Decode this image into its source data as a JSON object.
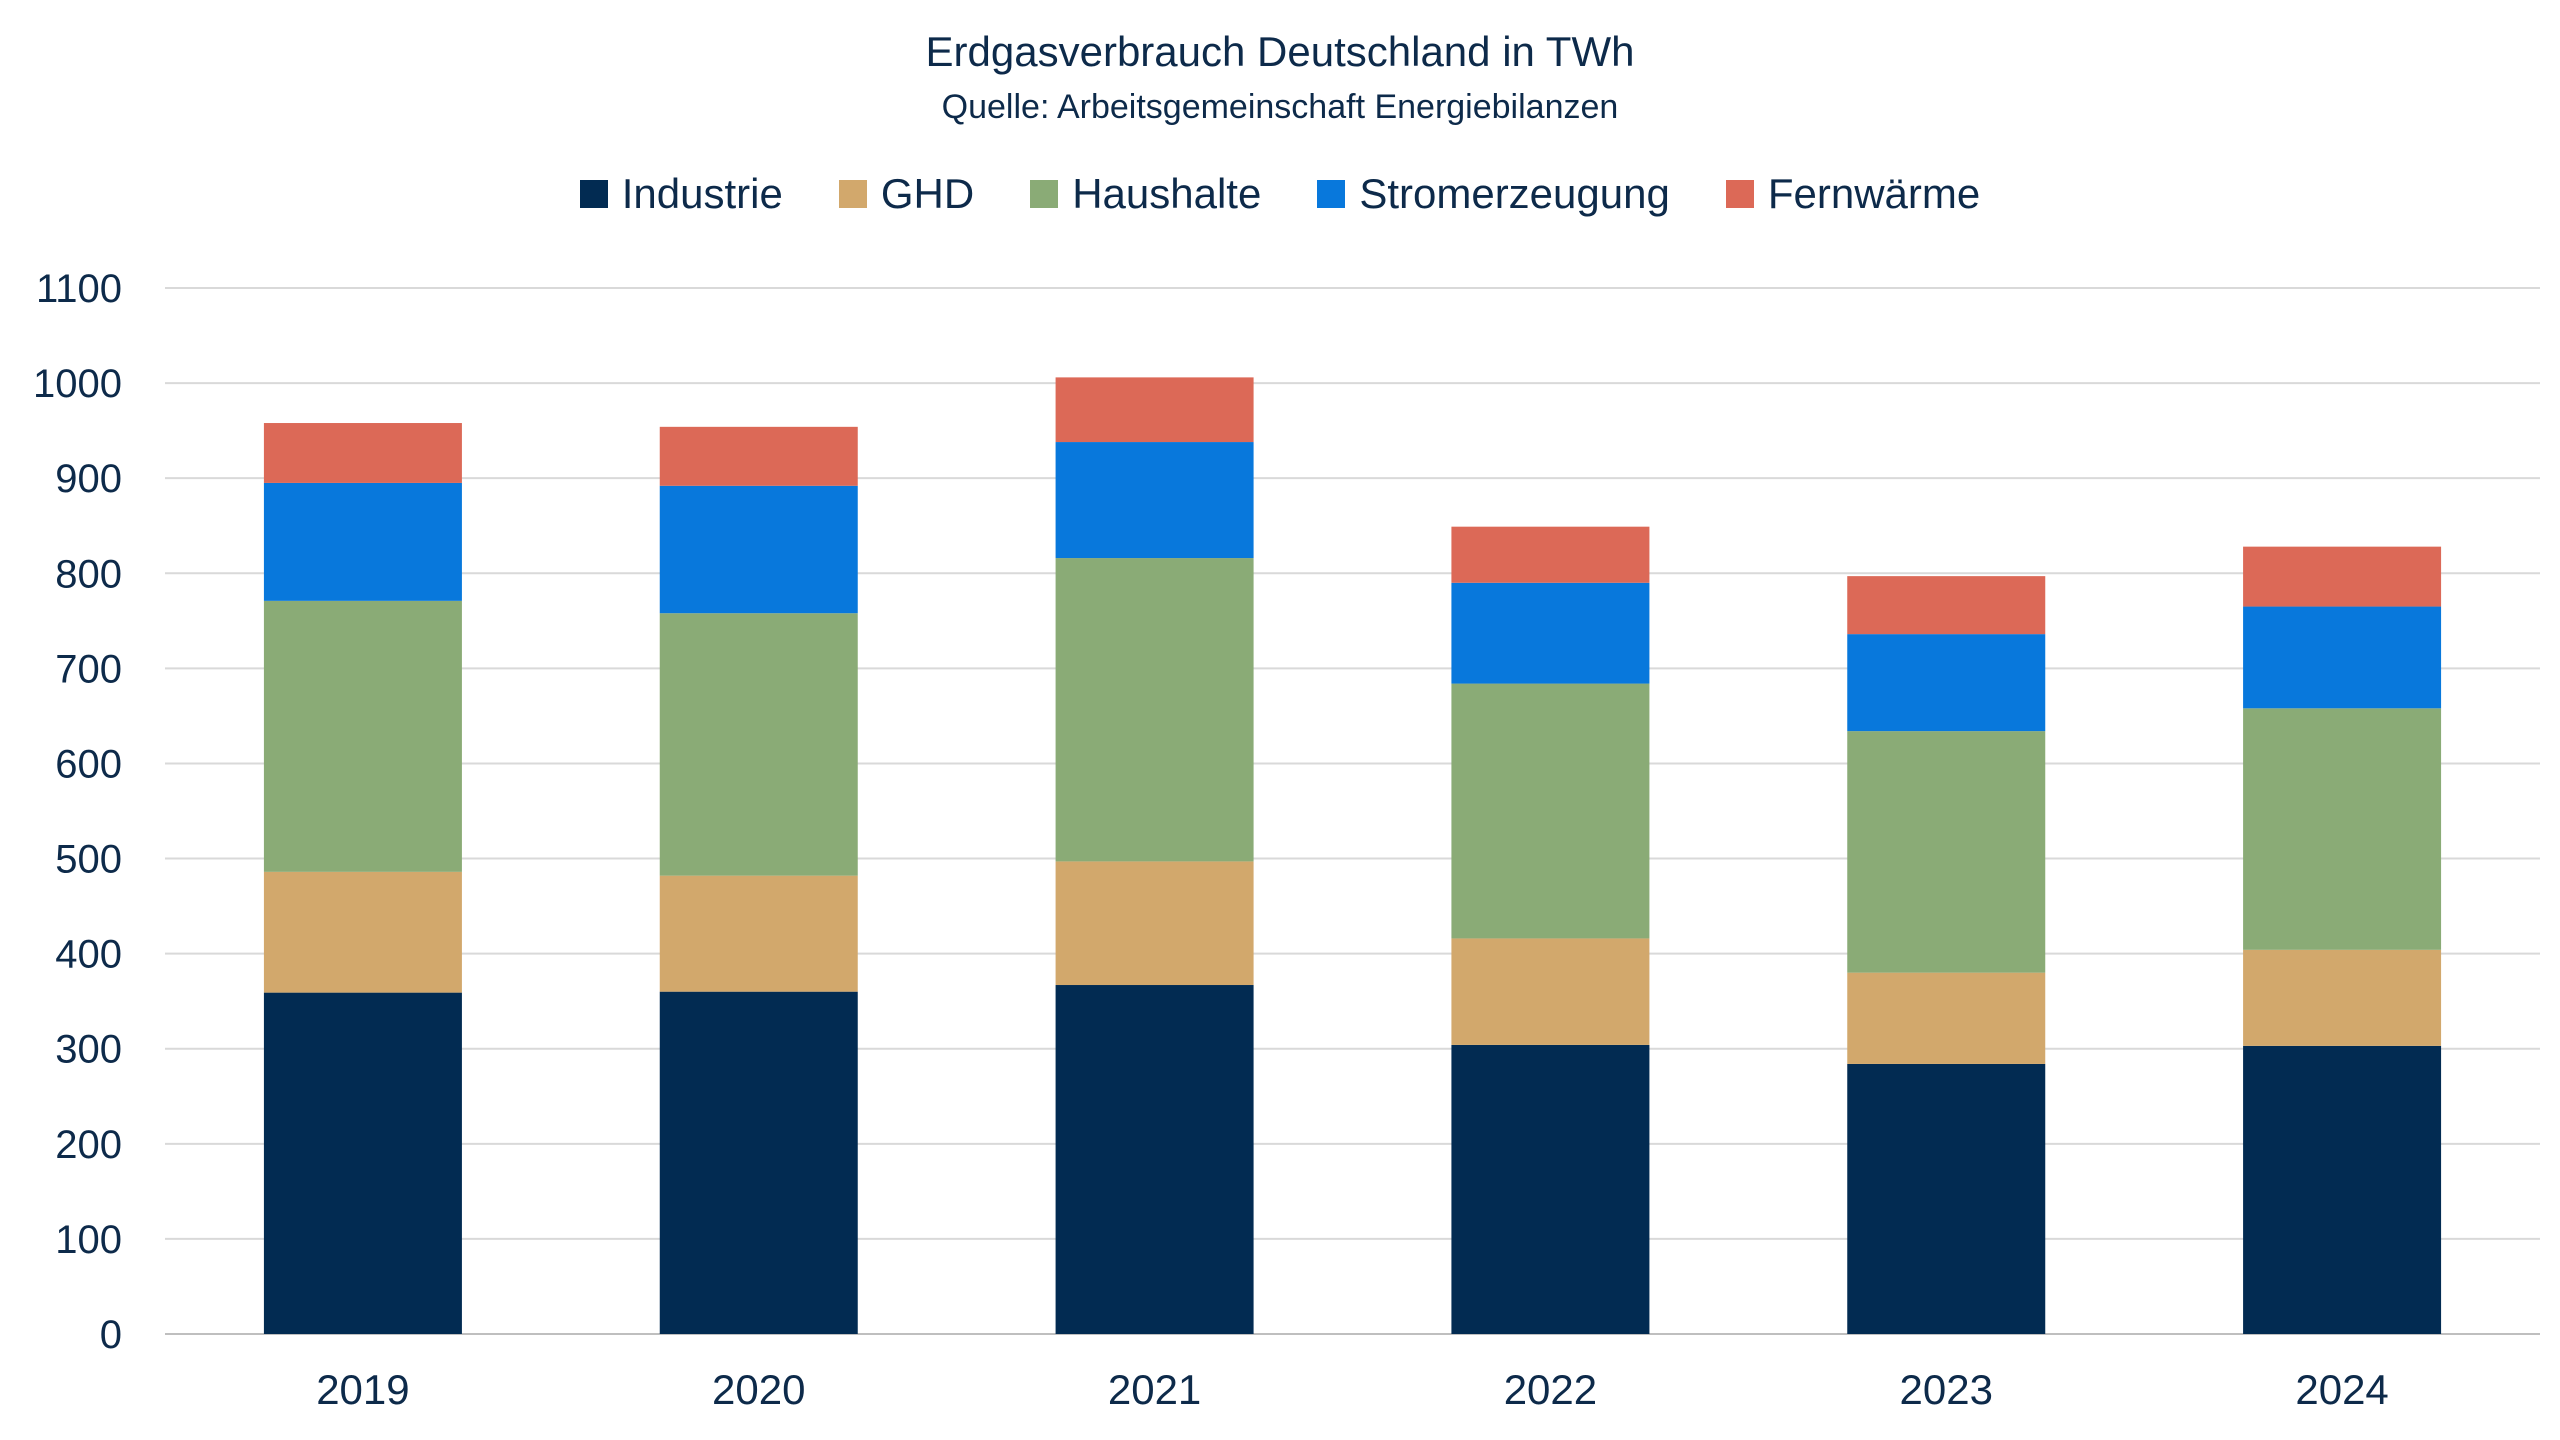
{
  "chart_data": {
    "type": "bar",
    "stacked": true,
    "title": "Erdgasverbrauch Deutschland in TWh",
    "subtitle": "Quelle: Arbeitsgemeinschaft Energiebilanzen",
    "categories": [
      "2019",
      "2020",
      "2021",
      "2022",
      "2023",
      "2024"
    ],
    "ylim": [
      0,
      1100
    ],
    "yticks": [
      0,
      100,
      200,
      300,
      400,
      500,
      600,
      700,
      800,
      900,
      1000,
      1100
    ],
    "grid": true,
    "legend_position": "top-center",
    "series": [
      {
        "name": "Industrie",
        "color": "#022b52",
        "values": [
          359,
          360,
          367,
          304,
          284,
          303
        ]
      },
      {
        "name": "GHD",
        "color": "#d2a86c",
        "values": [
          127,
          122,
          130,
          112,
          96,
          101
        ]
      },
      {
        "name": "Haushalte",
        "color": "#8aab76",
        "values": [
          285,
          276,
          319,
          268,
          254,
          254
        ]
      },
      {
        "name": "Stromerzeugung",
        "color": "#0878dc",
        "values": [
          124,
          134,
          122,
          106,
          102,
          107
        ]
      },
      {
        "name": "Fernwärme",
        "color": "#dc6957",
        "values": [
          63,
          62,
          68,
          59,
          61,
          63
        ]
      }
    ]
  }
}
